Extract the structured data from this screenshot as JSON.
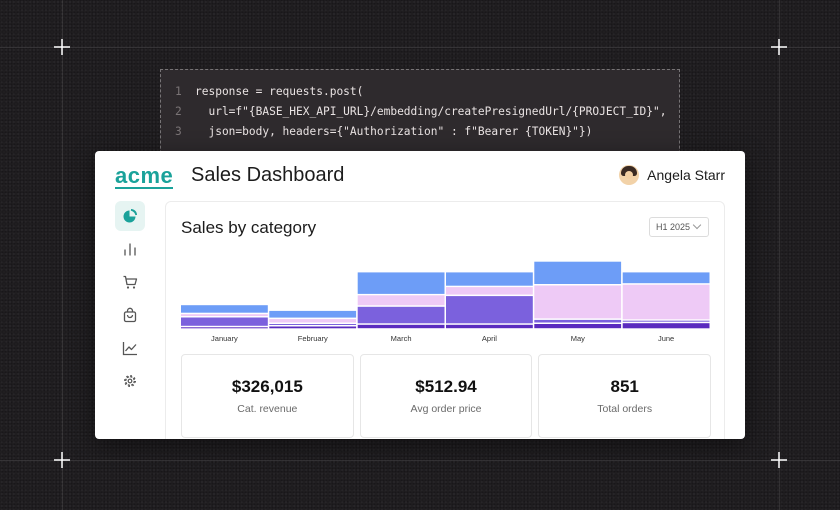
{
  "code": {
    "lines": [
      {
        "num": "1",
        "text": "response = requests.post("
      },
      {
        "num": "2",
        "text": "  url=f\"{BASE_HEX_API_URL}/embedding/createPresignedUrl/{PROJECT_ID}\","
      },
      {
        "num": "3",
        "text": "  json=body, headers={\"Authorization\" : f\"Bearer {TOKEN}\"})"
      }
    ]
  },
  "header": {
    "logo": "acme",
    "title": "Sales Dashboard",
    "user_name": "Angela Starr"
  },
  "sidebar": {
    "items": [
      {
        "icon": "pie-chart-icon",
        "active": true
      },
      {
        "icon": "bar-chart-icon",
        "active": false
      },
      {
        "icon": "cart-icon",
        "active": false
      },
      {
        "icon": "shopping-bag-icon",
        "active": false
      },
      {
        "icon": "line-chart-icon",
        "active": false
      },
      {
        "icon": "gear-icon",
        "active": false
      }
    ]
  },
  "panel": {
    "title": "Sales by category",
    "period": "H1 2025"
  },
  "colors": {
    "accent": "#1aa29a",
    "series": [
      "#5a2bbf",
      "#7b61dd",
      "#eecaf6",
      "#6d9df7"
    ]
  },
  "chart_data": {
    "type": "bar",
    "stacked": true,
    "categories": [
      "January",
      "February",
      "March",
      "April",
      "May",
      "June"
    ],
    "series": [
      {
        "values": [
          3,
          4,
          6,
          6,
          7,
          8
        ]
      },
      {
        "values": [
          12,
          3,
          22,
          35,
          5,
          3
        ]
      },
      {
        "values": [
          4,
          6,
          14,
          11,
          42,
          44
        ]
      },
      {
        "values": [
          11,
          10,
          28,
          18,
          29,
          15
        ]
      }
    ],
    "ylim": [
      0,
      100
    ],
    "grid": false,
    "legend": "none"
  },
  "stats": [
    {
      "value": "$326,015",
      "label": "Cat. revenue"
    },
    {
      "value": "$512.94",
      "label": "Avg order price"
    },
    {
      "value": "851",
      "label": "Total orders"
    }
  ]
}
